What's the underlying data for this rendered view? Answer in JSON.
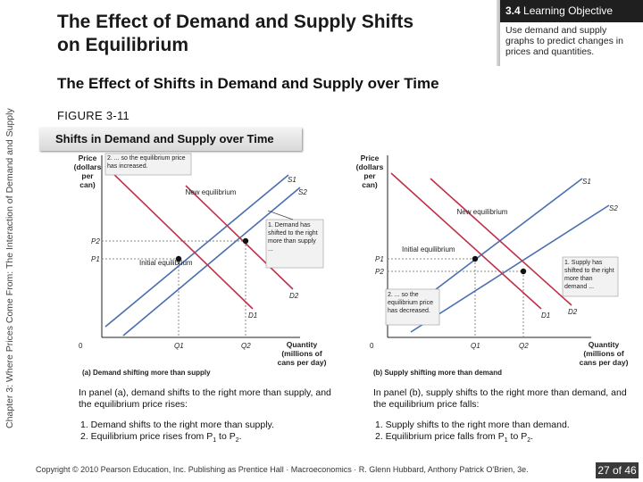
{
  "side_label": "Chapter 3: Where Prices Come From: The Interaction of Demand and Supply",
  "slide_title": "The Effect of Demand and Supply Shifts on Equilibrium",
  "objective": {
    "number": "3.4",
    "heading": "Learning Objective",
    "text": "Use demand and supply graphs to predict changes in prices and quantities."
  },
  "subtitle": "The Effect of Shifts in Demand and Supply over Time",
  "figure_label": "FIGURE 3-11",
  "figure_title": "Shifts in Demand and Supply over Time",
  "panel_a": {
    "y_label_1": "Price",
    "y_label_2": "(dollars",
    "y_label_3": "per",
    "y_label_4": "can)",
    "note_top": "2. ... so the equilibrium price has increased.",
    "note_demand": "1. Demand has shifted to the right more than supply ...",
    "new_eq": "New equilibrium",
    "initial_eq": "Initial equilibrium",
    "s1": "S1",
    "s2": "S2",
    "d1": "D1",
    "d2": "D2",
    "p1": "P1",
    "p2": "P2",
    "q1": "Q1",
    "q2": "Q2",
    "origin": "0",
    "x_label_1": "Quantity",
    "x_label_2": "(millions of",
    "x_label_3": "cans per day)",
    "title": "(a) Demand shifting more than supply"
  },
  "panel_b": {
    "y_label_1": "Price",
    "y_label_2": "(dollars",
    "y_label_3": "per",
    "y_label_4": "can)",
    "note_supply": "1. Supply has shifted to the right more than demand ...",
    "note_price": "2. ... so the equilibrium price has decreased.",
    "new_eq": "New equilibrium",
    "initial_eq": "Initial equilibrium",
    "s1": "S1",
    "s2": "S2",
    "d1": "D1",
    "d2": "D2",
    "p1": "P1",
    "p2": "P2",
    "q1": "Q1",
    "q2": "Q2",
    "origin": "0",
    "x_label_1": "Quantity",
    "x_label_2": "(millions of",
    "x_label_3": "cans per day)",
    "title": "(b) Supply shifting more than demand"
  },
  "caption_a": {
    "intro": "In panel (a), demand shifts to the right more than supply, and the equilibrium price rises:",
    "item1": "1. Demand shifts to the right more than supply.",
    "item2_pre": "2. Equilibrium price rises from P",
    "item2_sub1": "1",
    "item2_mid": " to P",
    "item2_sub2": "2",
    "item2_post": "."
  },
  "caption_b": {
    "intro": "In panel (b), supply shifts to the right more than demand, and the equilibrium price falls:",
    "item1": "1. Supply shifts to the right more than demand.",
    "item2_pre": "2. Equilibrium price falls from P",
    "item2_sub1": "1",
    "item2_mid": " to P",
    "item2_sub2": "2",
    "item2_post": "."
  },
  "footer": "Copyright © 2010 Pearson Education, Inc. Publishing as Prentice Hall · Macroeconomics · R. Glenn Hubbard, Anthony Patrick O'Brien, 3e.",
  "page_number": "27 of 46",
  "colors": {
    "supply": "#4a6fb0",
    "demand": "#c0304a",
    "note_bg": "#f2f2f2"
  }
}
